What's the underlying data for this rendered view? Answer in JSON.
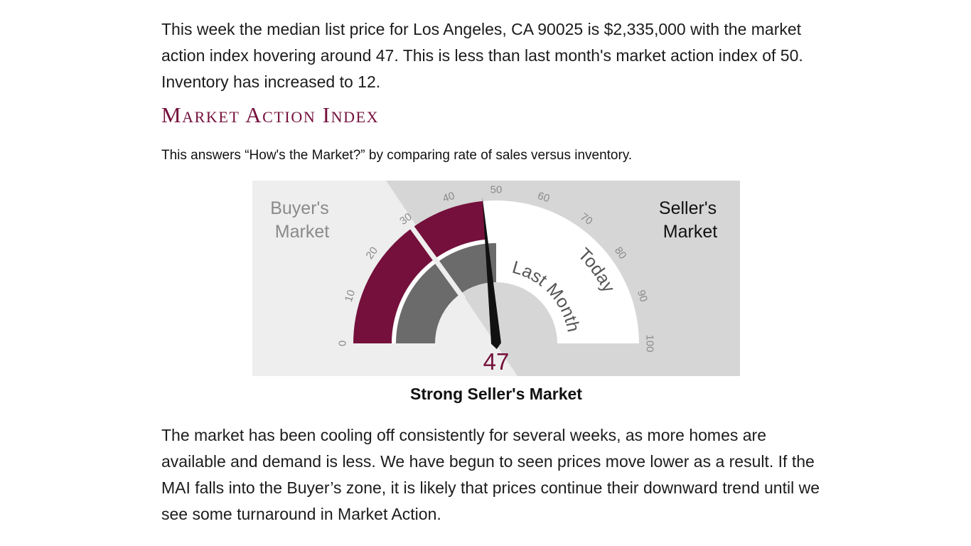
{
  "intro": "This week the median list price for Los Angeles, CA 90025 is $2,335,000 with the market action index hovering around 47. This is less than last month's market action index of 50. Inventory has increased to 12.",
  "section_title": "Market Action Index",
  "subtitle": "This answers “How's the Market?” by comparing rate of sales versus inventory.",
  "gauge": {
    "buyers_label": [
      "Buyer's",
      "Market"
    ],
    "sellers_label": [
      "Seller's",
      "Market"
    ],
    "ring_labels": {
      "last_month": "Last Month",
      "today": "Today"
    },
    "ticks": [
      "0",
      "10",
      "20",
      "30",
      "40",
      "50",
      "60",
      "70",
      "80",
      "90",
      "100"
    ],
    "scale_min": 0,
    "scale_max": 100,
    "buyer_threshold": 30,
    "today_value": 47,
    "last_month_value": 50,
    "value_label": "47",
    "colors": {
      "accent": "#75103c",
      "last_month_fill": "#6b6b6b",
      "buyer_zone_bg": "#eeeeee",
      "seller_zone_bg": "#d6d6d6",
      "track_fill": "#ffffff",
      "needle": "#111111"
    }
  },
  "caption": "Strong Seller's Market",
  "outro": "The market has been cooling off consistently for several weeks, as more homes are available and demand is less. We have begun to seen prices move lower as a result. If the MAI falls into the Buyer’s zone, it is likely that prices continue their downward trend until we see some turnaround in Market Action."
}
